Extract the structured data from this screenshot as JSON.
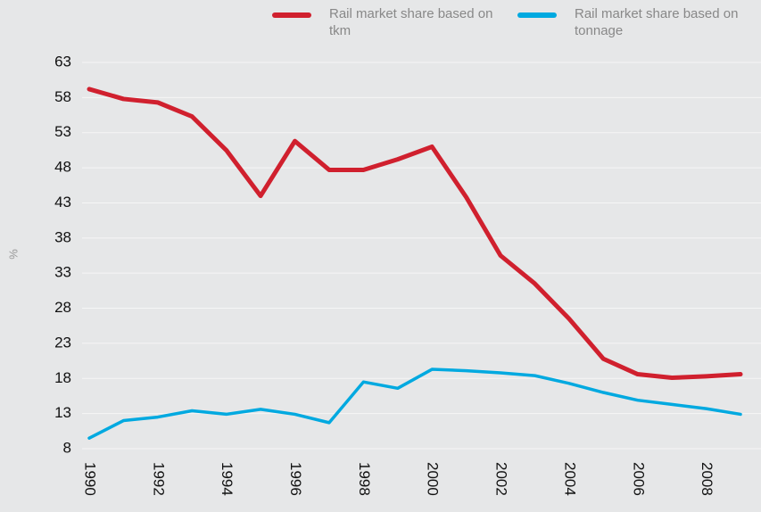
{
  "chart_data": {
    "type": "line",
    "y_label": "%",
    "x": [
      1990,
      1991,
      1992,
      1993,
      1994,
      1995,
      1996,
      1997,
      1998,
      1999,
      2000,
      2001,
      2002,
      2003,
      2004,
      2005,
      2006,
      2007,
      2008,
      2009
    ],
    "series": [
      {
        "name": "Rail market share based on tkm",
        "color": "#d0202e",
        "values": [
          59.2,
          57.8,
          57.3,
          55.3,
          50.5,
          44,
          51.8,
          47.7,
          47.7,
          49.2,
          51,
          43.8,
          35.5,
          31.5,
          26.5,
          20.8,
          18.6,
          18.1,
          18.3,
          18.6
        ]
      },
      {
        "name": "Rail market share based on tonnage",
        "color": "#00a9e0",
        "values": [
          9.5,
          12,
          12.5,
          13.4,
          12.9,
          13.6,
          12.9,
          11.7,
          17.5,
          16.6,
          19.3,
          19.1,
          18.8,
          18.4,
          17.3,
          16,
          14.9,
          14.3,
          13.7,
          12.9
        ]
      }
    ],
    "xlim": [
      1990,
      2009
    ],
    "xticks": [
      1990,
      1992,
      1994,
      1996,
      1998,
      2000,
      2002,
      2004,
      2006,
      2008
    ],
    "ylim": [
      8,
      63
    ],
    "yticks": [
      8,
      13,
      18,
      23,
      28,
      33,
      38,
      43,
      48,
      53,
      58,
      63
    ],
    "grid": true
  }
}
